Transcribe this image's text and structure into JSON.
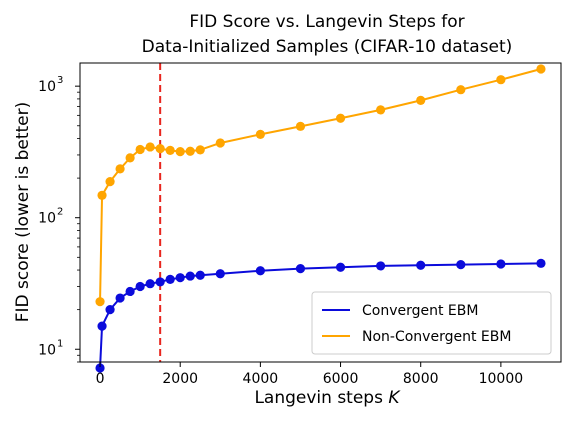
{
  "chart_data": {
    "type": "line",
    "title_line1": "FID Score vs. Langevin Steps for",
    "title_line2": "Data-Initialized Samples (CIFAR-10 dataset)",
    "xlabel_text": "Langevin steps ",
    "xlabel_var": "K",
    "ylabel": "FID score (lower is better)",
    "xlim": [
      -500,
      11500
    ],
    "ylim": [
      8,
      1500
    ],
    "yscale": "log",
    "x_ticks": [
      0,
      2000,
      4000,
      6000,
      8000,
      10000
    ],
    "x_tick_labels": [
      "0",
      "2000",
      "4000",
      "6000",
      "8000",
      "10000"
    ],
    "y_ticks": [
      10,
      100,
      1000
    ],
    "y_tick_base": "10",
    "y_tick_exponents": [
      "1",
      "2",
      "3"
    ],
    "vline": {
      "x": 1500,
      "color": "#e8261e",
      "style": "dashed"
    },
    "legend_position": "lower right",
    "series": [
      {
        "name": "Convergent EBM",
        "color": "#0b0bdb",
        "x": [
          0,
          50,
          250,
          500,
          750,
          1000,
          1250,
          1500,
          1750,
          2000,
          2250,
          2500,
          3000,
          4000,
          5000,
          6000,
          7000,
          8000,
          9000,
          10000,
          11000
        ],
        "values": [
          7.2,
          15,
          20,
          24.5,
          27.5,
          30,
          31.5,
          32.5,
          34,
          35,
          36,
          36.5,
          37.5,
          39.5,
          41,
          42,
          43,
          43.5,
          44,
          44.5,
          45
        ]
      },
      {
        "name": "Non-Convergent EBM",
        "color": "#ffa500",
        "x": [
          0,
          50,
          250,
          500,
          750,
          1000,
          1250,
          1500,
          1750,
          2000,
          2250,
          2500,
          3000,
          4000,
          5000,
          6000,
          7000,
          8000,
          9000,
          10000,
          11000
        ],
        "values": [
          23,
          148,
          188,
          235,
          285,
          330,
          345,
          335,
          325,
          318,
          320,
          328,
          370,
          430,
          495,
          570,
          660,
          780,
          940,
          1120,
          1350
        ]
      }
    ]
  }
}
